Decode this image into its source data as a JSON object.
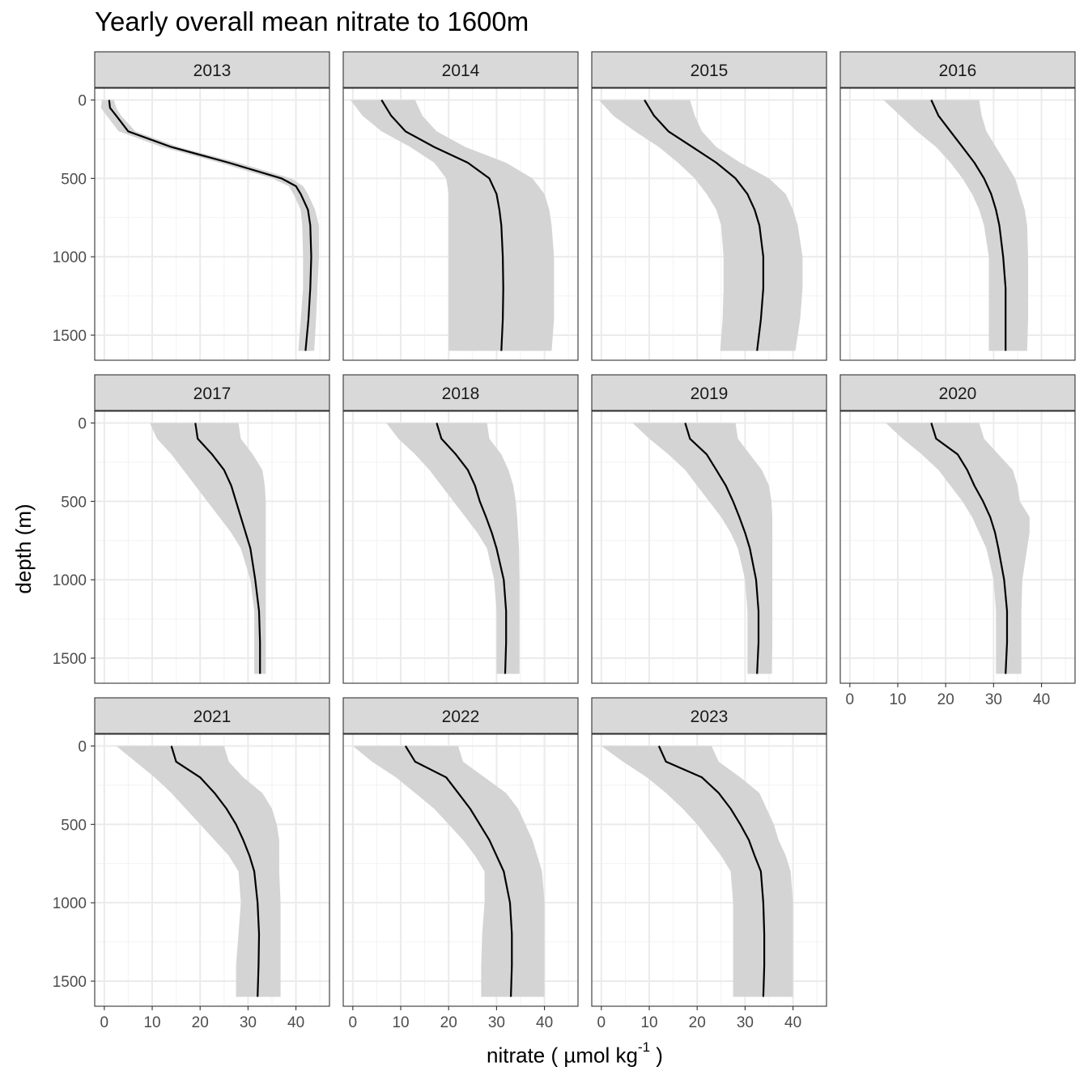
{
  "chart_data": {
    "type": "line",
    "layout": "facet-wrap",
    "title": "Yearly overall mean nitrate to 1600m",
    "xlabel_main": "nitrate ( µmol kg",
    "xlabel_sup": "-1",
    "xlabel_close": " )",
    "ylabel": "depth (m)",
    "xlim": [
      -2,
      47
    ],
    "ylim": [
      1660,
      -75
    ],
    "y_reversed": true,
    "x_ticks": [
      0,
      10,
      20,
      30,
      40
    ],
    "y_ticks": [
      0,
      500,
      1000,
      1500
    ],
    "grid": true,
    "line_color": "#000000",
    "ribbon_color": "#d4d4d4",
    "strip_fill": "#d9d9d9",
    "facets": [
      {
        "label": "2013",
        "depth": [
          0,
          50,
          100,
          200,
          300,
          400,
          500,
          550,
          600,
          700,
          800,
          1000,
          1200,
          1400,
          1600
        ],
        "mean": [
          1,
          1.2,
          2.5,
          5,
          14,
          26,
          37,
          40,
          41,
          42.5,
          43,
          43.2,
          43,
          42.6,
          42
        ],
        "lower": [
          -0.5,
          -0.7,
          0.5,
          3,
          12,
          24,
          35,
          38.5,
          39.5,
          41,
          41.3,
          41.5,
          41.5,
          41,
          40.5
        ],
        "upper": [
          2,
          2.5,
          3.5,
          6.5,
          15.5,
          28,
          39,
          41.5,
          42.5,
          44,
          44.8,
          44.8,
          44.5,
          44.2,
          43.8
        ]
      },
      {
        "label": "2014",
        "depth": [
          0,
          100,
          200,
          300,
          400,
          500,
          600,
          700,
          800,
          1000,
          1200,
          1400,
          1600
        ],
        "mean": [
          6,
          8,
          11,
          17,
          24,
          28.5,
          30,
          30.6,
          31,
          31.3,
          31.4,
          31.3,
          31
        ],
        "lower": [
          -0.5,
          2,
          6,
          12,
          17,
          19.5,
          20,
          20,
          20,
          20,
          20,
          20,
          20
        ],
        "upper": [
          13,
          14.5,
          17.5,
          23.5,
          32,
          37.5,
          40,
          41,
          41.5,
          42,
          42,
          42,
          41.5
        ]
      },
      {
        "label": "2015",
        "depth": [
          0,
          100,
          200,
          300,
          400,
          500,
          600,
          700,
          800,
          1000,
          1200,
          1400,
          1600
        ],
        "mean": [
          9,
          11,
          14,
          19,
          24,
          28,
          30.5,
          32,
          33,
          33.8,
          33.8,
          33.3,
          32.5
        ],
        "lower": [
          -0.5,
          2.5,
          7,
          12,
          16,
          19.5,
          22,
          24,
          25,
          25.5,
          25.5,
          25.3,
          24.8
        ],
        "upper": [
          18.5,
          19.5,
          21,
          24,
          29,
          35,
          38.5,
          40,
          41,
          42,
          42,
          41.5,
          40.5
        ]
      },
      {
        "label": "2016",
        "depth": [
          0,
          100,
          200,
          300,
          400,
          500,
          600,
          700,
          800,
          1000,
          1200,
          1400,
          1600
        ],
        "mean": [
          17,
          18.5,
          21,
          23.5,
          26,
          28,
          29.5,
          30.5,
          31.2,
          32,
          32.5,
          32.5,
          32.5
        ],
        "lower": [
          7,
          10.5,
          14,
          18,
          21,
          23.5,
          25.5,
          27,
          28,
          29,
          29,
          29,
          29
        ],
        "upper": [
          27,
          27.5,
          28.5,
          30.5,
          32.5,
          34.5,
          35.5,
          36.5,
          37,
          37.2,
          37.2,
          37.2,
          37
        ]
      },
      {
        "label": "2017",
        "depth": [
          0,
          100,
          200,
          300,
          400,
          500,
          600,
          700,
          800,
          1000,
          1200,
          1400,
          1600
        ],
        "mean": [
          19,
          19.5,
          22.5,
          25,
          26.5,
          27.5,
          28.5,
          29.5,
          30.5,
          31.5,
          32.3,
          32.5,
          32.5
        ],
        "lower": [
          9.5,
          11,
          14,
          16.5,
          19,
          21.5,
          24,
          26.5,
          28.5,
          30.5,
          31.3,
          31.3,
          31.3
        ],
        "upper": [
          28,
          28.5,
          31,
          33,
          33.5,
          33.7,
          33.7,
          33.7,
          33.7,
          33.7,
          33.7,
          33.7,
          33.7
        ]
      },
      {
        "label": "2018",
        "depth": [
          0,
          100,
          200,
          300,
          400,
          500,
          600,
          700,
          800,
          1000,
          1200,
          1400,
          1600
        ],
        "mean": [
          17.5,
          18.5,
          21.5,
          24,
          25.5,
          26.5,
          27.8,
          29,
          30,
          31.5,
          32,
          32,
          31.8
        ],
        "lower": [
          7,
          9.5,
          13,
          16,
          18.5,
          21,
          23.5,
          26,
          28,
          29.5,
          30,
          30,
          30
        ],
        "upper": [
          28,
          28.5,
          31,
          32.5,
          33.5,
          34,
          34.3,
          34.5,
          34.7,
          34.8,
          34.8,
          34.8,
          34.8
        ]
      },
      {
        "label": "2019",
        "depth": [
          0,
          100,
          200,
          300,
          400,
          500,
          600,
          700,
          800,
          1000,
          1200,
          1400,
          1600
        ],
        "mean": [
          17.5,
          18.5,
          22,
          24,
          26,
          27.5,
          28.8,
          30,
          31,
          32.3,
          32.8,
          32.8,
          32.5
        ],
        "lower": [
          6.5,
          10,
          14,
          17.5,
          20,
          22.5,
          25,
          27,
          28.5,
          30,
          30.5,
          30.5,
          30.5
        ],
        "upper": [
          28,
          28.5,
          31,
          33.5,
          35,
          35.5,
          35.7,
          35.7,
          35.7,
          35.7,
          35.7,
          35.7,
          35.6
        ]
      },
      {
        "label": "2020",
        "depth": [
          0,
          100,
          200,
          300,
          400,
          500,
          600,
          700,
          800,
          1000,
          1200,
          1400,
          1600
        ],
        "mean": [
          17,
          18,
          22.5,
          24.5,
          26,
          27.8,
          29.3,
          30.3,
          31,
          32.2,
          32.8,
          32.8,
          32.5
        ],
        "lower": [
          7.5,
          11,
          15,
          18.5,
          21,
          23.5,
          25.5,
          27,
          28.5,
          30,
          30.5,
          30.5,
          30.5
        ],
        "upper": [
          27,
          28,
          31,
          34,
          35,
          35.5,
          37.5,
          37.5,
          37,
          36,
          35.8,
          35.8,
          35.8
        ]
      },
      {
        "label": "2021",
        "depth": [
          0,
          100,
          200,
          300,
          400,
          500,
          600,
          700,
          800,
          1000,
          1200,
          1400,
          1600
        ],
        "mean": [
          14,
          15,
          20,
          23,
          25.5,
          27.5,
          29,
          30.3,
          31.3,
          32,
          32.3,
          32.2,
          32
        ],
        "lower": [
          2.5,
          6.5,
          10.5,
          14,
          17,
          20,
          23,
          26,
          28,
          28.5,
          28,
          27.5,
          27.5
        ],
        "upper": [
          25,
          26,
          29,
          33,
          35,
          36,
          36.5,
          36.5,
          36.5,
          36.8,
          36.8,
          36.8,
          36.8
        ]
      },
      {
        "label": "2022",
        "depth": [
          0,
          100,
          200,
          300,
          400,
          500,
          600,
          700,
          800,
          1000,
          1200,
          1400,
          1600
        ],
        "mean": [
          11,
          13,
          19.5,
          22,
          24.5,
          26.5,
          28.5,
          30,
          31.5,
          32.8,
          33.2,
          33.2,
          33
        ],
        "lower": [
          0,
          4,
          9,
          13,
          17,
          20,
          23,
          25.5,
          27.5,
          27.5,
          27,
          26.8,
          26.8
        ],
        "upper": [
          22,
          23,
          27.5,
          32,
          34.5,
          36,
          37.5,
          38.5,
          39.5,
          40,
          40,
          40,
          40
        ]
      },
      {
        "label": "2023",
        "depth": [
          0,
          100,
          200,
          300,
          400,
          500,
          600,
          700,
          800,
          1000,
          1200,
          1400,
          1600
        ],
        "mean": [
          12,
          13.5,
          21,
          24.5,
          27,
          29,
          30.8,
          32,
          33.3,
          33.8,
          34,
          34,
          33.8
        ],
        "lower": [
          0,
          4.5,
          9.5,
          13.5,
          17,
          20,
          22.5,
          25,
          27,
          27.5,
          27.5,
          27.5,
          27.5
        ],
        "upper": [
          23,
          24.5,
          29,
          33,
          34.5,
          36,
          37,
          38.5,
          39.5,
          40,
          40,
          40,
          40
        ]
      }
    ]
  }
}
